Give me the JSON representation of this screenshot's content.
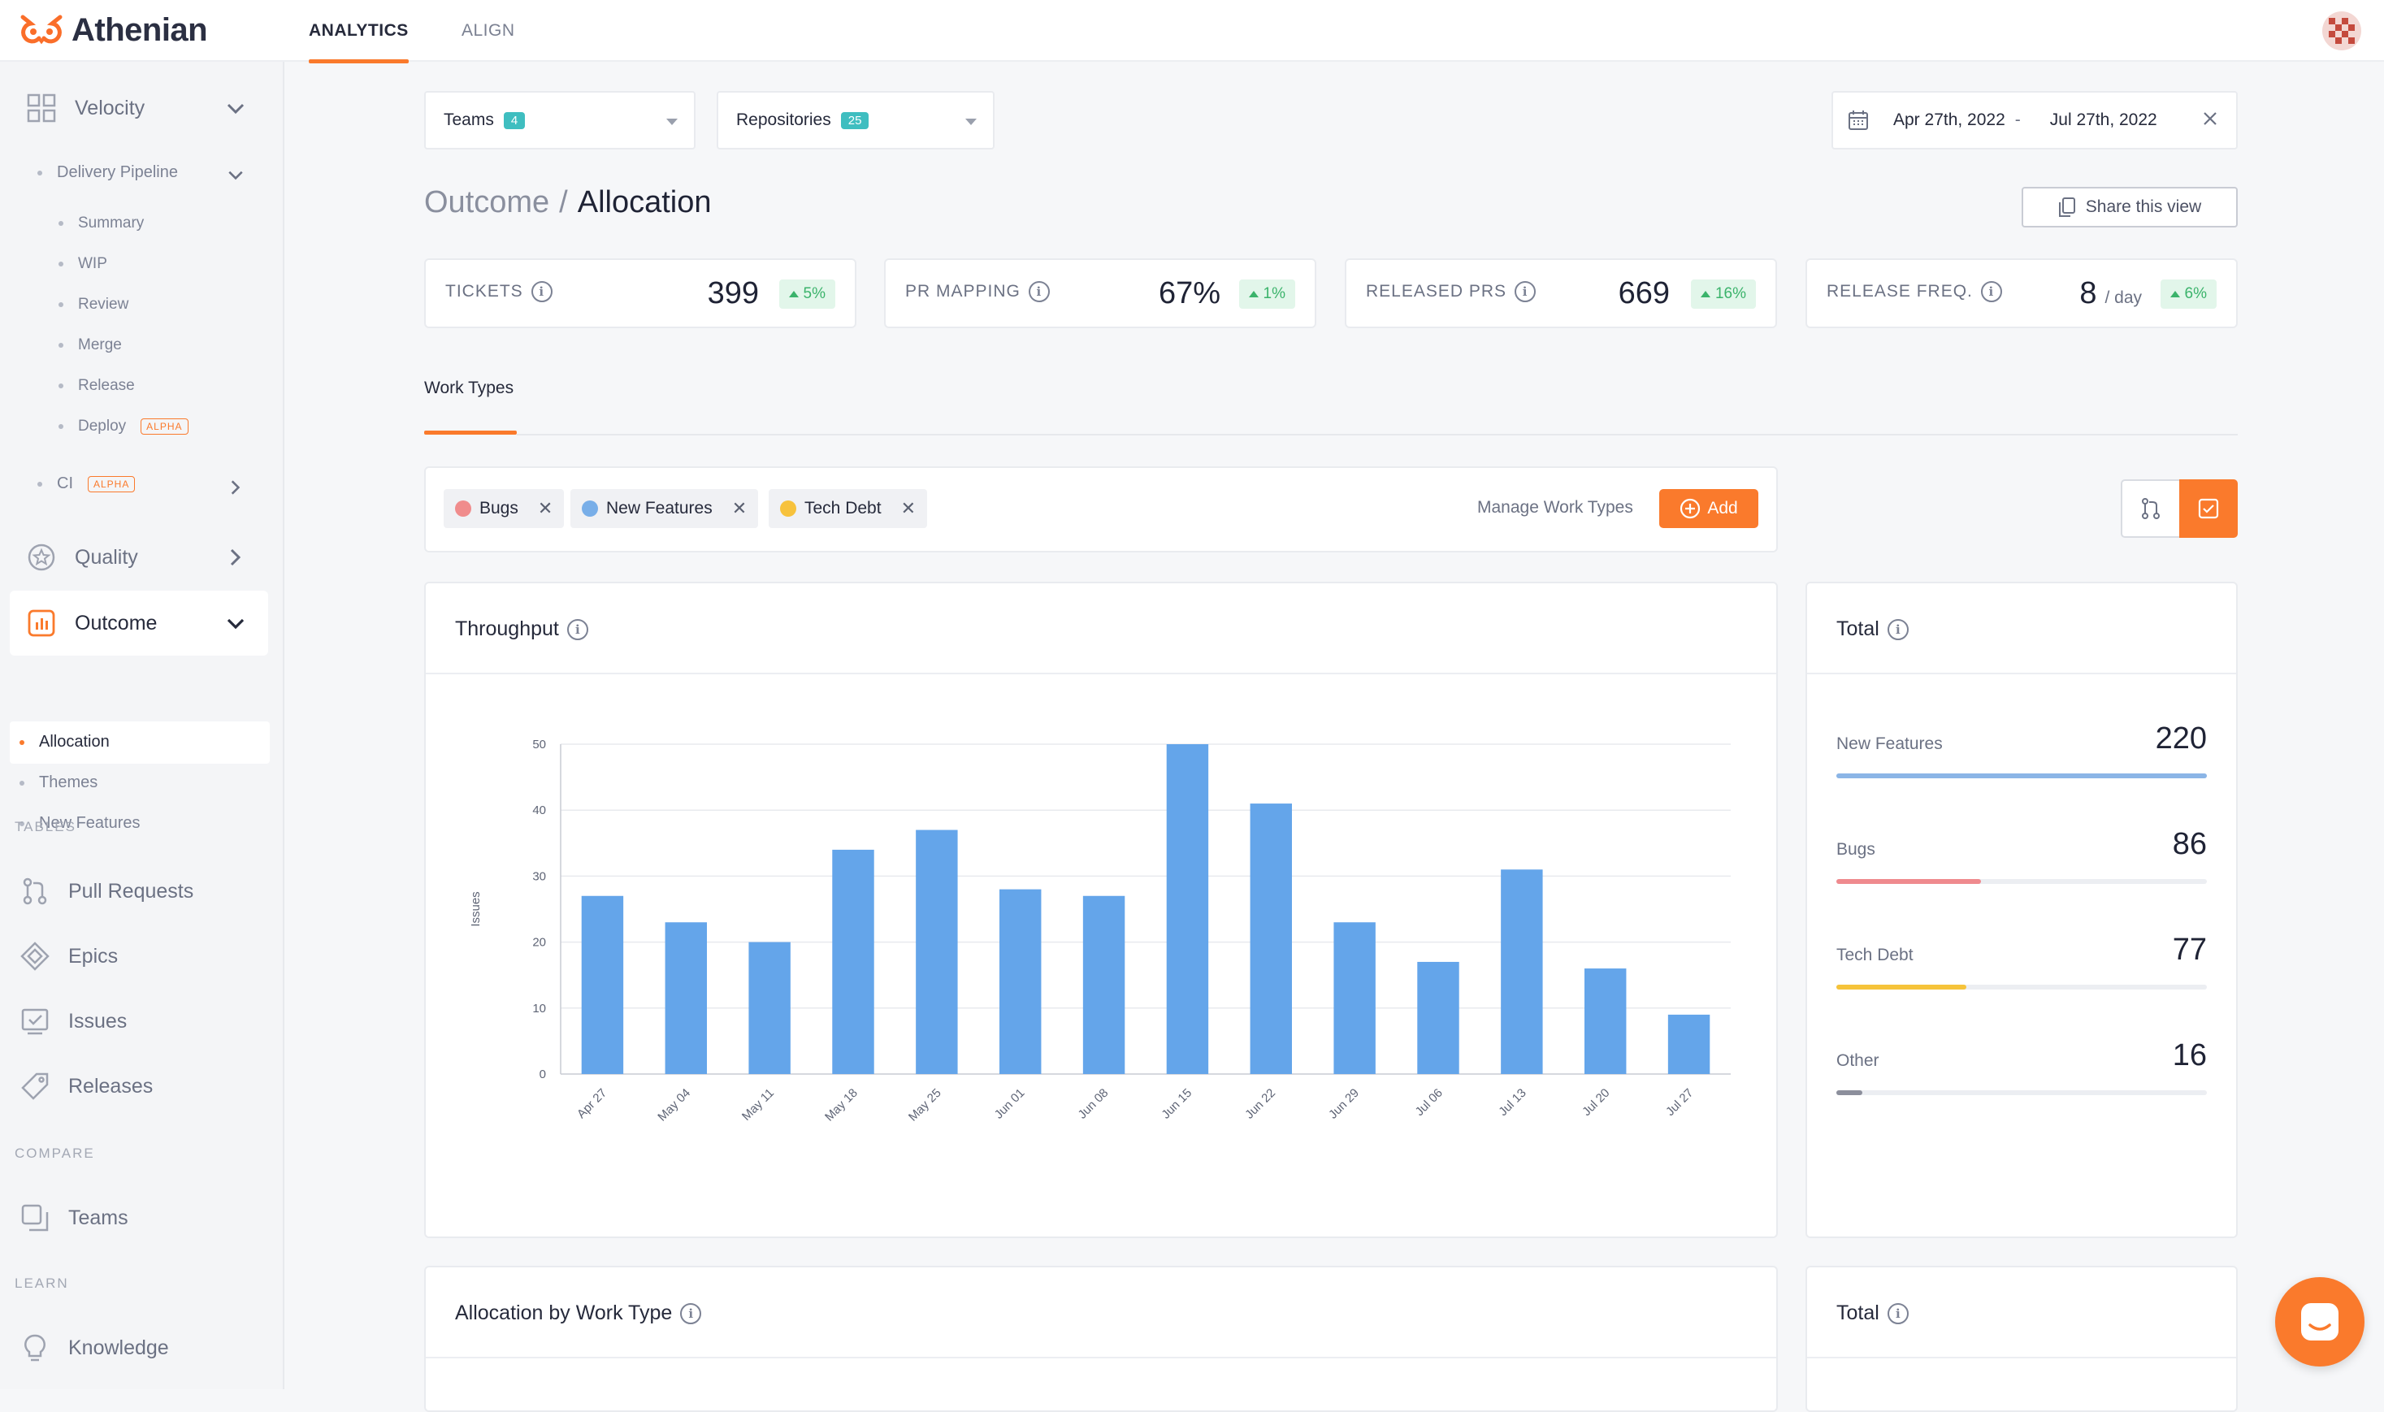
{
  "app": {
    "name": "Athenian"
  },
  "topnav": {
    "tabs": [
      {
        "label": "ANALYTICS",
        "active": true
      },
      {
        "label": "ALIGN",
        "active": false
      }
    ]
  },
  "sidebar": {
    "velocity": {
      "label": "Velocity"
    },
    "delivery_pipeline": {
      "label": "Delivery Pipeline",
      "items": [
        "Summary",
        "WIP",
        "Review",
        "Merge",
        "Release",
        "Deploy"
      ],
      "deploy_badge": "ALPHA"
    },
    "ci": {
      "label": "CI",
      "badge": "ALPHA"
    },
    "quality": {
      "label": "Quality"
    },
    "outcome": {
      "label": "Outcome",
      "items": [
        "Allocation",
        "Themes",
        "New Features"
      ]
    },
    "tables_section": "TABLES",
    "tables": [
      "Pull Requests",
      "Epics",
      "Issues",
      "Releases"
    ],
    "compare_section": "COMPARE",
    "compare": [
      "Teams"
    ],
    "learn_section": "LEARN",
    "learn": [
      "Knowledge"
    ]
  },
  "filters": {
    "teams": {
      "label": "Teams",
      "count": "4"
    },
    "repositories": {
      "label": "Repositories",
      "count": "25"
    },
    "date_range": {
      "start": "Apr 27th, 2022",
      "separator": "-",
      "end": "Jul 27th, 2022"
    }
  },
  "page": {
    "breadcrumb_parent": "Outcome",
    "separator": "/",
    "title": "Allocation",
    "share_label": "Share this view"
  },
  "kpis": [
    {
      "label": "TICKETS",
      "value": "399",
      "unit": "",
      "delta": "5%"
    },
    {
      "label": "PR MAPPING",
      "value": "67%",
      "unit": "",
      "delta": "1%"
    },
    {
      "label": "RELEASED PRS",
      "value": "669",
      "unit": "",
      "delta": "16%"
    },
    {
      "label": "RELEASE FREQ.",
      "value": "8",
      "unit": "/ day",
      "delta": "6%"
    }
  ],
  "subtabs": [
    {
      "label": "Work Types",
      "active": true
    }
  ],
  "work_types": {
    "chips": [
      {
        "label": "Bugs",
        "color": "#f08c8c"
      },
      {
        "label": "New Features",
        "color": "#78aee8"
      },
      {
        "label": "Tech Debt",
        "color": "#f7c23c"
      }
    ],
    "manage_label": "Manage Work Types",
    "add_label": "Add"
  },
  "throughput": {
    "title": "Throughput"
  },
  "chart_data": {
    "type": "bar",
    "title": "Throughput",
    "ylabel": "Issues",
    "xlabel": "",
    "categories": [
      "Apr 27",
      "May 04",
      "May 11",
      "May 18",
      "May 25",
      "Jun 01",
      "Jun 08",
      "Jun 15",
      "Jun 22",
      "Jun 29",
      "Jul 06",
      "Jul 13",
      "Jul 20",
      "Jul 27"
    ],
    "values": [
      27,
      23,
      20,
      34,
      37,
      28,
      27,
      50,
      41,
      23,
      17,
      31,
      16,
      9
    ],
    "ylim": [
      0,
      50
    ],
    "yticks": [
      0,
      10,
      20,
      30,
      40,
      50
    ],
    "grid": true,
    "color": "#64a5ea"
  },
  "totals": {
    "title": "Total",
    "items": [
      {
        "label": "New Features",
        "value": "220",
        "fraction": 1.0,
        "color": "#8bb5e6"
      },
      {
        "label": "Bugs",
        "value": "86",
        "fraction": 0.39,
        "color": "#ef8a8e"
      },
      {
        "label": "Tech Debt",
        "value": "77",
        "fraction": 0.35,
        "color": "#f6c33a"
      },
      {
        "label": "Other",
        "value": "16",
        "fraction": 0.07,
        "color": "#8c8f9c"
      }
    ]
  },
  "allocation": {
    "title": "Allocation by Work Type"
  },
  "totals2": {
    "title": "Total"
  }
}
